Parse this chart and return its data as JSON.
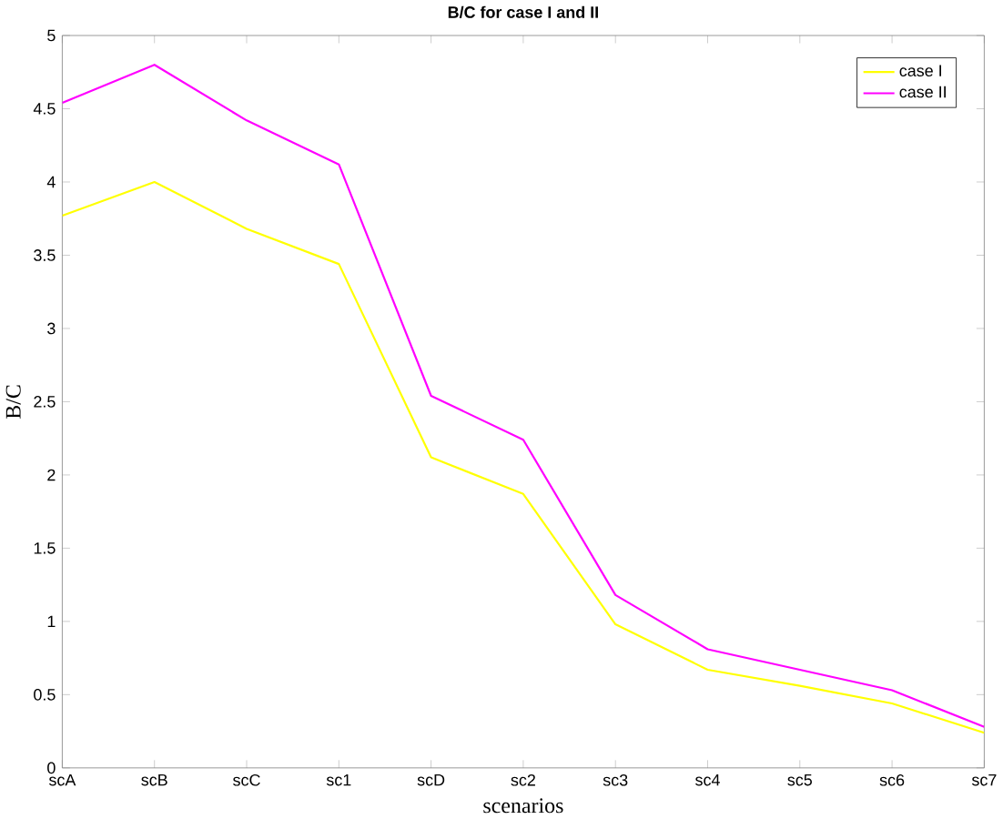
{
  "chart_data": {
    "type": "line",
    "title": "B/C for case I and II",
    "xlabel": "scenarios",
    "ylabel": "B/C",
    "categories": [
      "scA",
      "scB",
      "scC",
      "sc1",
      "scD",
      "sc2",
      "sc3",
      "sc4",
      "sc5",
      "sc6",
      "sc7"
    ],
    "series": [
      {
        "name": "case I",
        "color": "#ffff00",
        "values": [
          3.77,
          4.0,
          3.68,
          3.44,
          2.12,
          1.87,
          0.98,
          0.67,
          0.56,
          0.44,
          0.24
        ]
      },
      {
        "name": "case II",
        "color": "#ff00ff",
        "values": [
          4.54,
          4.8,
          4.42,
          4.12,
          2.54,
          2.24,
          1.18,
          0.81,
          0.67,
          0.53,
          0.28
        ]
      }
    ],
    "ylim": [
      0,
      5
    ],
    "yticks": [
      0,
      0.5,
      1,
      1.5,
      2,
      2.5,
      3,
      3.5,
      4,
      4.5,
      5
    ],
    "legend": "top right",
    "grid": false,
    "marker": "none",
    "line_style": "solid"
  }
}
